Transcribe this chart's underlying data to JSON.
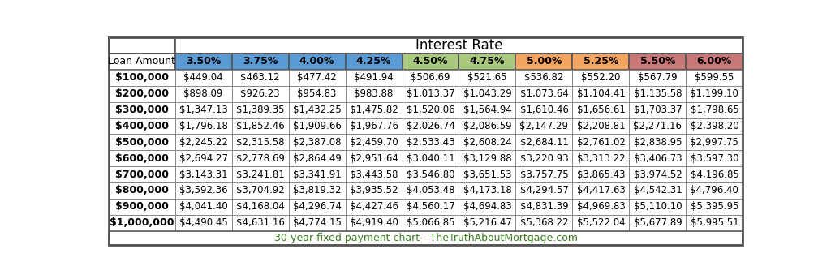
{
  "title": "Interest Rate",
  "footer": "30-year fixed payment chart - TheTruthAboutMortgage.com",
  "footer_color": "#3a7a1e",
  "loan_label": "Loan Amount",
  "col_headers": [
    "3.50%",
    "3.75%",
    "4.00%",
    "4.25%",
    "4.50%",
    "4.75%",
    "5.00%",
    "5.25%",
    "5.50%",
    "6.00%"
  ],
  "col_header_colors": [
    "#5b9bd5",
    "#5b9bd5",
    "#5b9bd5",
    "#5b9bd5",
    "#a9c97e",
    "#a9c97e",
    "#f4a460",
    "#f4a460",
    "#c97878",
    "#c97878"
  ],
  "loan_amounts": [
    "$100,000",
    "$200,000",
    "$300,000",
    "$400,000",
    "$500,000",
    "$600,000",
    "$700,000",
    "$800,000",
    "$900,000",
    "$1,000,000"
  ],
  "table_data": [
    [
      "$449.04",
      "$463.12",
      "$477.42",
      "$491.94",
      "$506.69",
      "$521.65",
      "$536.82",
      "$552.20",
      "$567.79",
      "$599.55"
    ],
    [
      "$898.09",
      "$926.23",
      "$954.83",
      "$983.88",
      "$1,013.37",
      "$1,043.29",
      "$1,073.64",
      "$1,104.41",
      "$1,135.58",
      "$1,199.10"
    ],
    [
      "$1,347.13",
      "$1,389.35",
      "$1,432.25",
      "$1,475.82",
      "$1,520.06",
      "$1,564.94",
      "$1,610.46",
      "$1,656.61",
      "$1,703.37",
      "$1,798.65"
    ],
    [
      "$1,796.18",
      "$1,852.46",
      "$1,909.66",
      "$1,967.76",
      "$2,026.74",
      "$2,086.59",
      "$2,147.29",
      "$2,208.81",
      "$2,271.16",
      "$2,398.20"
    ],
    [
      "$2,245.22",
      "$2,315.58",
      "$2,387.08",
      "$2,459.70",
      "$2,533.43",
      "$2,608.24",
      "$2,684.11",
      "$2,761.02",
      "$2,838.95",
      "$2,997.75"
    ],
    [
      "$2,694.27",
      "$2,778.69",
      "$2,864.49",
      "$2,951.64",
      "$3,040.11",
      "$3,129.88",
      "$3,220.93",
      "$3,313.22",
      "$3,406.73",
      "$3,597.30"
    ],
    [
      "$3,143.31",
      "$3,241.81",
      "$3,341.91",
      "$3,443.58",
      "$3,546.80",
      "$3,651.53",
      "$3,757.75",
      "$3,865.43",
      "$3,974.52",
      "$4,196.85"
    ],
    [
      "$3,592.36",
      "$3,704.92",
      "$3,819.32",
      "$3,935.52",
      "$4,053.48",
      "$4,173.18",
      "$4,294.57",
      "$4,417.63",
      "$4,542.31",
      "$4,796.40"
    ],
    [
      "$4,041.40",
      "$4,168.04",
      "$4,296.74",
      "$4,427.46",
      "$4,560.17",
      "$4,694.83",
      "$4,831.39",
      "$4,969.83",
      "$5,110.10",
      "$5,395.95"
    ],
    [
      "$4,490.45",
      "$4,631.16",
      "$4,774.15",
      "$4,919.40",
      "$5,066.85",
      "$5,216.47",
      "$5,368.22",
      "$5,522.04",
      "$5,677.89",
      "$5,995.51"
    ]
  ],
  "bg_color": "#ffffff",
  "outer_border_color": "#555555",
  "grid_color": "#888888",
  "title_fontsize": 12,
  "header_fontsize": 9,
  "data_fontsize": 8.5,
  "loan_fontsize": 9,
  "footer_fontsize": 9,
  "fig_width": 10.24,
  "fig_height": 3.44,
  "dpi": 100
}
